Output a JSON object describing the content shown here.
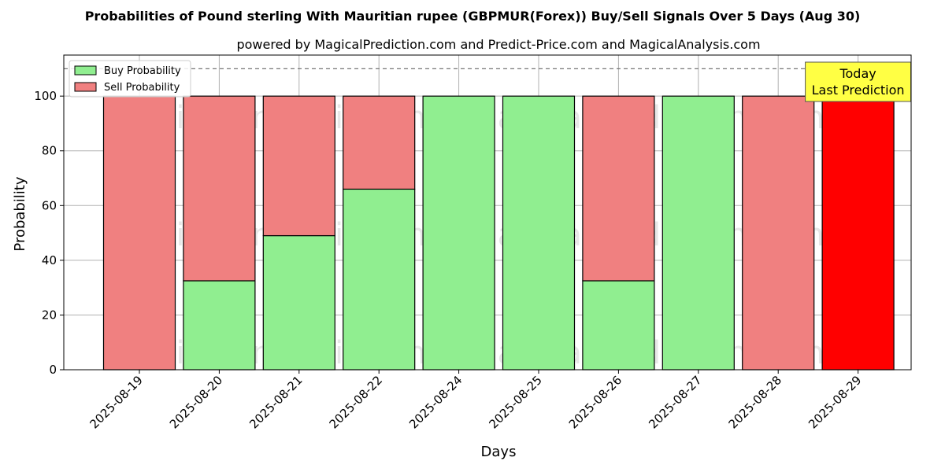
{
  "chart_data": {
    "type": "bar",
    "stacked": true,
    "title": "Probabilities of Pound sterling With Mauritian rupee (GBPMUR(Forex)) Buy/Sell Signals Over 5 Days (Aug 30)",
    "subtitle": "powered by MagicalPrediction.com and Predict-Price.com and MagicalAnalysis.com",
    "xlabel": "Days",
    "ylabel": "Probability",
    "ylim": [
      0,
      115
    ],
    "yticks": [
      0,
      20,
      40,
      60,
      80,
      100
    ],
    "grid": true,
    "legend_position": "top-left",
    "reference_line": 110,
    "categories": [
      "2025-08-19",
      "2025-08-20",
      "2025-08-21",
      "2025-08-22",
      "2025-08-24",
      "2025-08-25",
      "2025-08-26",
      "2025-08-27",
      "2025-08-28",
      "2025-08-29"
    ],
    "series": [
      {
        "name": "Buy Probability",
        "color": "#90ee90",
        "values": [
          0,
          32.5,
          49,
          66,
          100,
          100,
          32.5,
          100,
          0,
          0
        ]
      },
      {
        "name": "Sell Probability",
        "color": "#f08080",
        "values": [
          100,
          67.5,
          51,
          34,
          0,
          0,
          67.5,
          0,
          100,
          100
        ]
      }
    ],
    "highlight": {
      "index": 9,
      "color": "#ff0000"
    },
    "annotation": {
      "line1": "Today",
      "line2": "Last Prediction",
      "bg": "#ffff44"
    },
    "watermarks": [
      "MagicalAnalysis.com",
      "MagicalPrediction.com"
    ]
  }
}
